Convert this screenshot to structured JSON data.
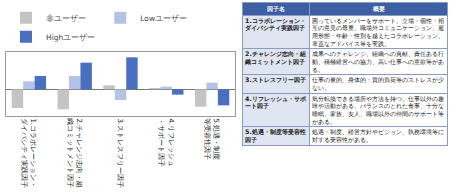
{
  "chart_data": {
    "type": "bar",
    "categories": [
      "1.コラボレーション・ダイバシティ実践因子",
      "2.チャレンジ志向・組織コミットメント因子",
      "3.ストレスフリー因子",
      "4.リフレッシュ・サポート因子",
      "5.処遇・制度等受容性因子"
    ],
    "series": [
      {
        "name": "非ユーザー",
        "color": "#c4c4c4",
        "values": [
          -0.07,
          -0.075,
          0.015,
          0.005,
          -0.065
        ]
      },
      {
        "name": "Lowユーザー",
        "color": "#b3c2e6",
        "values": [
          0.03,
          0.05,
          -0.04,
          0.01,
          0.025
        ]
      },
      {
        "name": "Highユーザー",
        "color": "#4a6fc0",
        "values": [
          0.05,
          0.1,
          0.12,
          -0.02,
          -0.06
        ]
      }
    ],
    "ylim": [
      -0.1,
      0.14
    ],
    "tick_labels": "x",
    "legend": "top"
  },
  "table": {
    "header": [
      "因子名",
      "概要"
    ],
    "rows": [
      [
        "1.コラボレーション・ダイバシティ実践因子",
        "困っているメンバーをサポート、立場・個性・相互の意見の尊重、職場外コミュニケーション、雇用形態・年齢・性別を越えたコラボレーション、率直なアドバイス等を実践。"
      ],
      [
        "2.チャレンジ志向・組織コミットメント因子",
        "成果へのチャレンジ、組織への貢献、責任ある行動、積極経営への協力、高い仕事への意欲等がある。"
      ],
      [
        "3.ストレスフリー因子",
        "仕事の量的、身体的・質的負荷等のストレスが少ない。"
      ],
      [
        "4.リフレッシュ・サポート因子",
        "気分転換できる場所や方法を持つ、仕事以外の趣味や活動がある、バランスのとれた食事、十分な睡眠、家族、友人、職場以外の仲間のサポート等がある。"
      ],
      [
        "5.処遇・制度等受容性因子",
        "処遇・制度、経営方針やビジョン、執務環境等に対する受容性がある。"
      ]
    ]
  }
}
